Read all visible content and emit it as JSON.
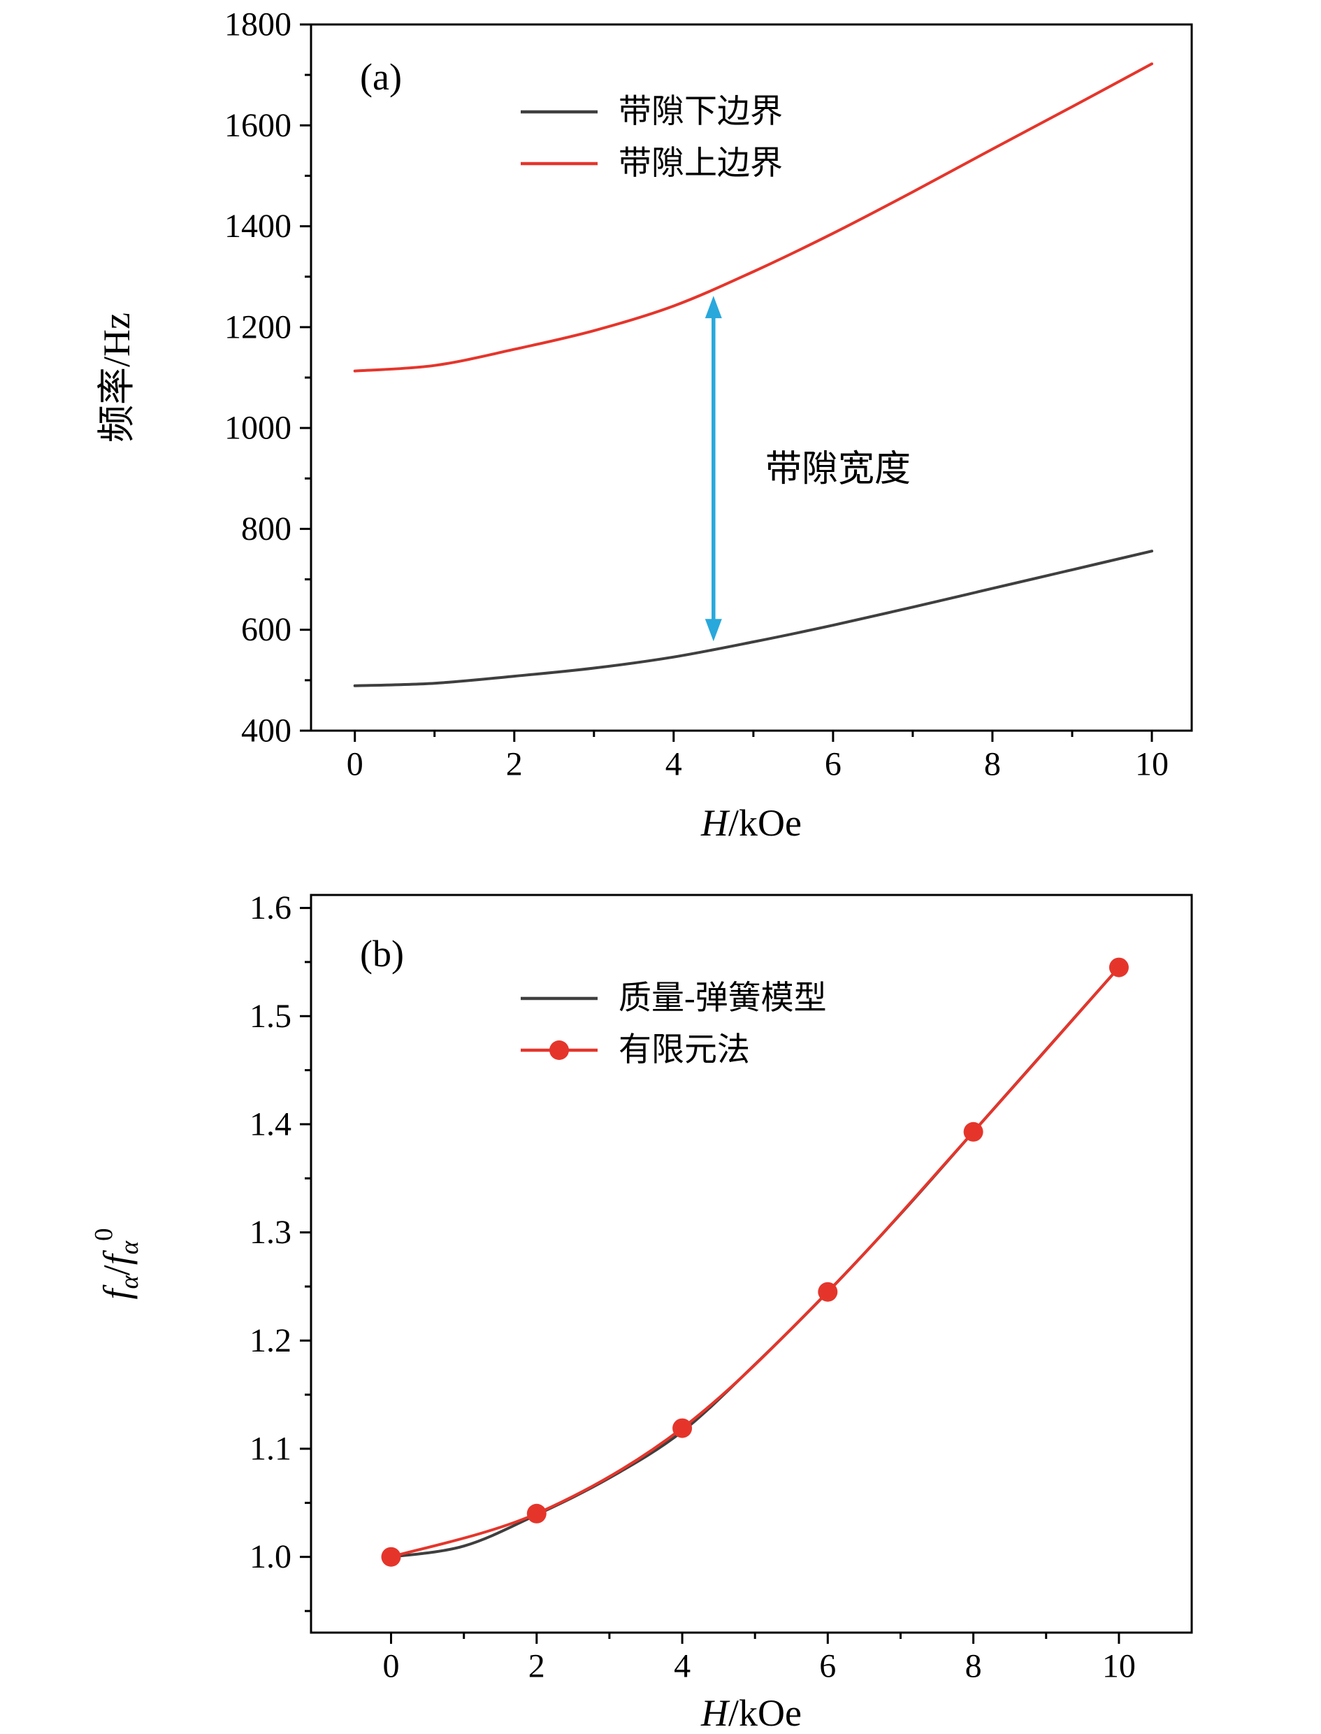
{
  "figure": {
    "background": "#ffffff"
  },
  "chart_data": [
    {
      "id": "a",
      "type": "line",
      "panel_label": "(a)",
      "xlabel": "H/kOe",
      "xlabel_rich": [
        {
          "text": "H",
          "italic": true
        },
        {
          "text": "/kOe"
        }
      ],
      "ylabel": "频率/Hz",
      "ylabel_rich": [
        {
          "text": "频率/Hz"
        }
      ],
      "xlim": [
        -0.55,
        10.5
      ],
      "ylim": [
        400,
        1800
      ],
      "xticks": {
        "values": [
          0,
          2,
          4,
          6,
          8,
          10
        ],
        "labels": [
          "0",
          "2",
          "4",
          "6",
          "8",
          "10"
        ],
        "minor": [
          1,
          3,
          5,
          7,
          9
        ]
      },
      "yticks": {
        "values": [
          400,
          600,
          800,
          1000,
          1200,
          1400,
          1600,
          1800
        ],
        "labels": [
          "400",
          "600",
          "800",
          "1000",
          "1200",
          "1400",
          "1600",
          "1800"
        ],
        "minor": [
          500,
          700,
          900,
          1100,
          1300,
          1500,
          1700
        ]
      },
      "grid": false,
      "legend_position": "top-center",
      "series": [
        {
          "name": "带隙下边界",
          "color": "#3f3f3f",
          "marker": "none",
          "x": [
            0,
            1,
            2,
            3,
            4,
            5,
            6,
            7,
            8,
            9,
            10
          ],
          "y": [
            489,
            494,
            508,
            524,
            546,
            576,
            609,
            645,
            682,
            719,
            756
          ]
        },
        {
          "name": "带隙上边界",
          "color": "#e5352b",
          "marker": "none",
          "x": [
            0,
            1,
            2,
            3,
            4,
            5,
            6,
            7,
            8,
            9,
            10
          ],
          "y": [
            1113,
            1124,
            1156,
            1193,
            1242,
            1310,
            1386,
            1468,
            1553,
            1637,
            1722
          ]
        }
      ],
      "annotation": {
        "label": "带隙宽度",
        "color": "#29a8dc",
        "arrow": {
          "x": 4.5,
          "y_from": 577,
          "y_to": 1262
        },
        "label_pos": {
          "x": 5.15,
          "y": 895
        }
      }
    },
    {
      "id": "b",
      "type": "line",
      "panel_label": "(b)",
      "xlabel": "H/kOe",
      "xlabel_rich": [
        {
          "text": "H",
          "italic": true
        },
        {
          "text": "/kOe"
        }
      ],
      "ylabel": "fα/fα0",
      "ylabel_rich": [
        {
          "text": "f",
          "italic": true
        },
        {
          "text": "α",
          "italic": true,
          "script": "sub"
        },
        {
          "text": "/"
        },
        {
          "text": "f",
          "italic": true
        },
        {
          "text": "α",
          "italic": true,
          "script": "sub"
        },
        {
          "text": "0",
          "script": "super"
        }
      ],
      "xlim": [
        -1.1,
        11.0
      ],
      "ylim": [
        0.93,
        1.612
      ],
      "xticks": {
        "values": [
          0,
          2,
          4,
          6,
          8,
          10
        ],
        "labels": [
          "0",
          "2",
          "4",
          "6",
          "8",
          "10"
        ],
        "minor": [
          1,
          3,
          5,
          7,
          9
        ]
      },
      "yticks": {
        "values": [
          1.0,
          1.1,
          1.2,
          1.3,
          1.4,
          1.5,
          1.6
        ],
        "labels": [
          "1.0",
          "1.1",
          "1.2",
          "1.3",
          "1.4",
          "1.5",
          "1.6"
        ],
        "minor": [
          0.95,
          1.05,
          1.15,
          1.25,
          1.35,
          1.45,
          1.55
        ]
      },
      "grid": false,
      "legend_position": "top-center",
      "series": [
        {
          "name": "质量-弹簧模型",
          "color": "#3f3f3f",
          "marker": "none",
          "x": [
            0,
            1,
            2,
            3,
            4,
            5,
            6,
            7,
            8,
            9,
            10
          ],
          "y": [
            1.0,
            1.01,
            1.039,
            1.073,
            1.116,
            1.178,
            1.245,
            1.317,
            1.393,
            1.469,
            1.545
          ]
        },
        {
          "name": "有限元法",
          "color": "#e5352b",
          "marker": "circle",
          "x": [
            0,
            2,
            4,
            6,
            8,
            10
          ],
          "y": [
            1.0,
            1.04,
            1.119,
            1.245,
            1.393,
            1.545
          ]
        }
      ]
    }
  ]
}
